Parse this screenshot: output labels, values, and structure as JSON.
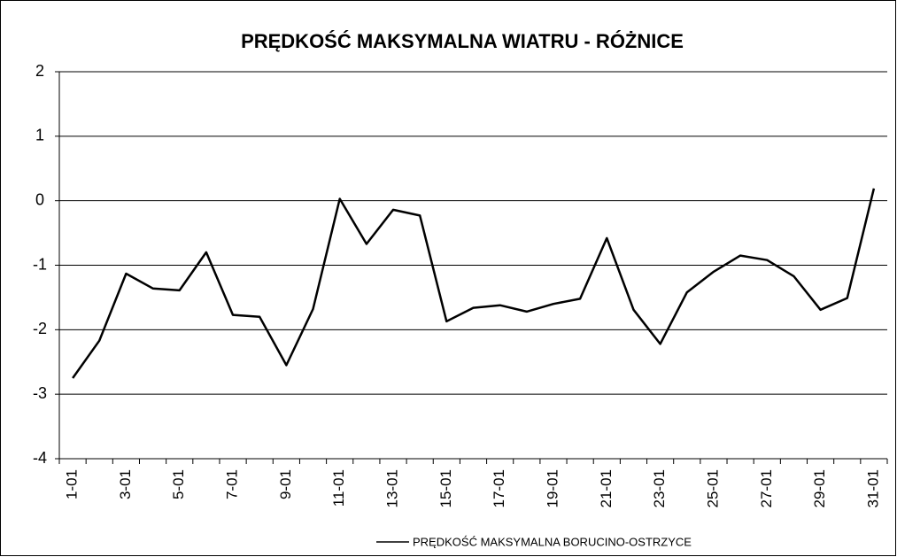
{
  "chart_data": {
    "type": "line",
    "title": "PRĘDKOŚĆ MAKSYMALNA WIATRU - RÓŻNICE",
    "categories": [
      "1-01",
      null,
      "3-01",
      null,
      "5-01",
      null,
      "7-01",
      null,
      "9-01",
      null,
      "11-01",
      null,
      "13-01",
      null,
      "15-01",
      null,
      "17-01",
      null,
      "19-01",
      null,
      "21-01",
      null,
      "23-01",
      null,
      "25-01",
      null,
      "27-01",
      null,
      "29-01",
      null,
      "31-01"
    ],
    "series": [
      {
        "name": "PRĘDKOŚĆ MAKSYMALNA  BORUCINO-OSTRZYCE",
        "color": "#000000",
        "values": [
          -2.75,
          -2.17,
          -1.13,
          -1.36,
          -1.39,
          -0.8,
          -1.77,
          -1.8,
          -2.55,
          -1.68,
          0.03,
          -0.67,
          -0.14,
          -0.23,
          -1.87,
          -1.66,
          -1.62,
          -1.72,
          -1.6,
          -1.52,
          -0.58,
          -1.69,
          -2.22,
          -1.42,
          -1.1,
          -0.85,
          -0.92,
          -1.17,
          -1.69,
          -1.51,
          0.19
        ]
      }
    ],
    "ylim": [
      -4,
      2
    ],
    "yticks": [
      -4,
      -3,
      -2,
      -1,
      0,
      1,
      2
    ],
    "grid": true,
    "legend": "bottom"
  }
}
